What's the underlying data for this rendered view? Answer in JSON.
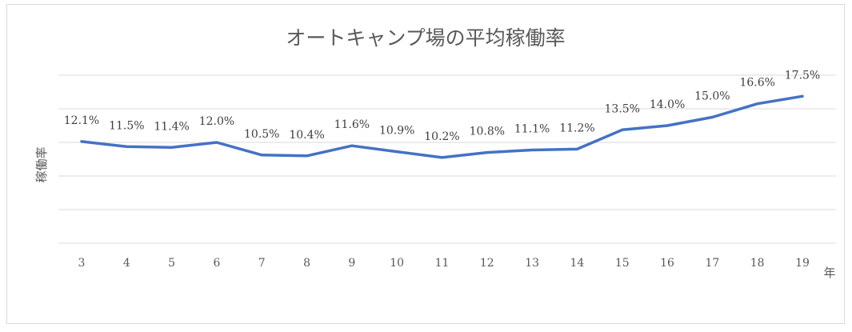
{
  "chart_data": {
    "type": "line",
    "title": "オートキャンプ場の平均稼働率",
    "xlabel": "年",
    "ylabel": "稼働率",
    "categories": [
      "3",
      "4",
      "5",
      "6",
      "7",
      "8",
      "9",
      "10",
      "11",
      "12",
      "13",
      "14",
      "15",
      "16",
      "17",
      "18",
      "19"
    ],
    "values": [
      12.1,
      11.5,
      11.4,
      12.0,
      10.5,
      10.4,
      11.6,
      10.9,
      10.2,
      10.8,
      11.1,
      11.2,
      13.5,
      14.0,
      15.0,
      16.6,
      17.5
    ],
    "data_labels": [
      "12.1%",
      "11.5%",
      "11.4%",
      "12.0%",
      "10.5%",
      "10.4%",
      "11.6%",
      "10.9%",
      "10.2%",
      "10.8%",
      "11.1%",
      "11.2%",
      "13.5%",
      "14.0%",
      "15.0%",
      "16.6%",
      "17.5%"
    ],
    "ylim": [
      0,
      20
    ],
    "grid": true,
    "legend": "none",
    "series_color": "#4472c4"
  }
}
